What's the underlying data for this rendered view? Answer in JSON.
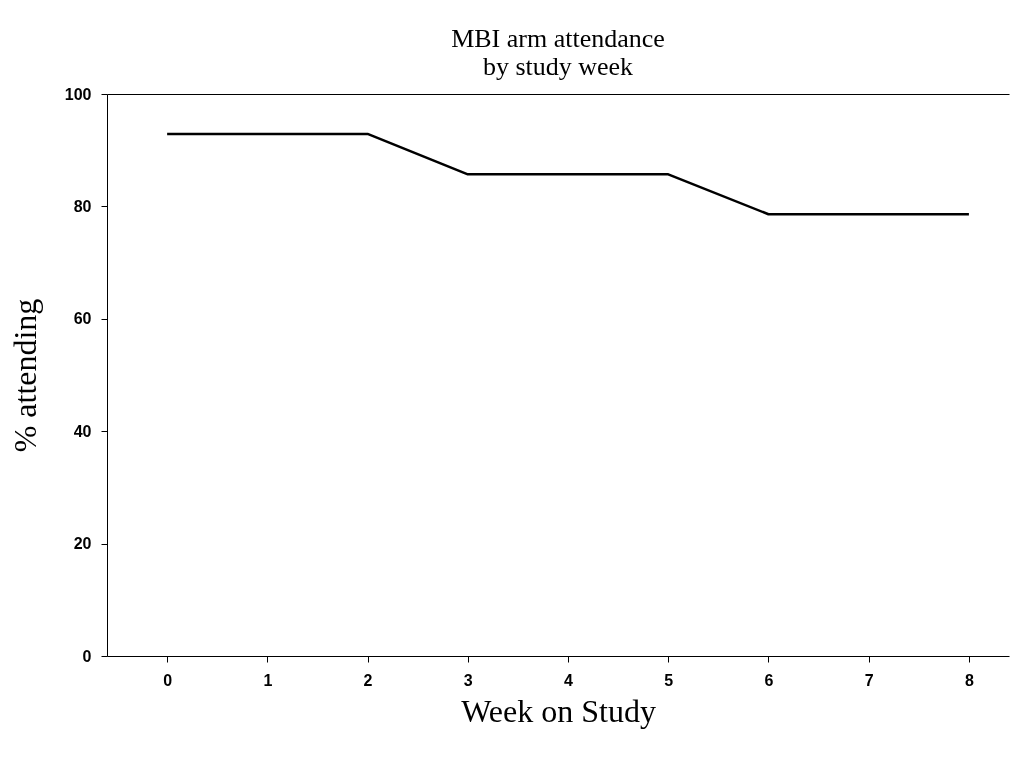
{
  "chart_data": {
    "type": "line",
    "title": [
      "MBI arm attendance",
      "by study week"
    ],
    "xlabel": "Week on Study",
    "ylabel": "%  attending",
    "x": [
      0,
      2,
      3,
      5,
      6,
      8
    ],
    "series": [
      {
        "color": "#000000",
        "values": [
          92.9,
          92.9,
          85.7,
          85.7,
          78.6,
          78.6
        ]
      }
    ],
    "xlim": [
      -0.6,
      8.4
    ],
    "xticks": [
      0,
      1,
      2,
      3,
      4,
      5,
      6,
      7,
      8
    ],
    "ylim": [
      0,
      100
    ],
    "yticks": [
      0,
      20,
      40,
      60,
      80,
      100
    ],
    "grid": false,
    "marker": "none",
    "line_style": "solid"
  }
}
